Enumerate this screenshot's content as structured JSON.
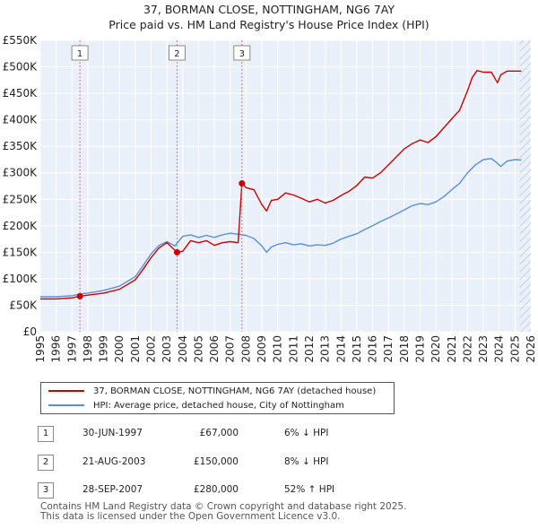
{
  "chart_data": {
    "type": "line",
    "title": "37, BORMAN CLOSE, NOTTINGHAM, NG6 7AY",
    "subtitle": "Price paid vs. HM Land Registry's House Price Index (HPI)",
    "ylim": [
      0,
      550000
    ],
    "y_ticks": [
      {
        "value": 0,
        "label": "£0"
      },
      {
        "value": 50000,
        "label": "£50K"
      },
      {
        "value": 100000,
        "label": "£100K"
      },
      {
        "value": 150000,
        "label": "£150K"
      },
      {
        "value": 200000,
        "label": "£200K"
      },
      {
        "value": 250000,
        "label": "£250K"
      },
      {
        "value": 300000,
        "label": "£300K"
      },
      {
        "value": 350000,
        "label": "£350K"
      },
      {
        "value": 400000,
        "label": "£400K"
      },
      {
        "value": 450000,
        "label": "£450K"
      },
      {
        "value": 500000,
        "label": "£500K"
      },
      {
        "value": 550000,
        "label": "£550K"
      }
    ],
    "xlim": [
      1995,
      2026
    ],
    "x_ticks": [
      "1995",
      "1996",
      "1997",
      "1998",
      "1999",
      "2000",
      "2001",
      "2002",
      "2003",
      "2004",
      "2005",
      "2006",
      "2007",
      "2008",
      "2009",
      "2010",
      "2011",
      "2012",
      "2013",
      "2014",
      "2015",
      "2016",
      "2017",
      "2018",
      "2019",
      "2020",
      "2021",
      "2022",
      "2023",
      "2024",
      "2025",
      "2026"
    ],
    "grid": true,
    "series": [
      {
        "name": "37, BORMAN CLOSE, NOTTINGHAM, NG6 7AY (detached house)",
        "color": "#cc0000",
        "x": [
          1995.0,
          1996.0,
          1997.0,
          1997.5,
          1998.0,
          1999.0,
          2000.0,
          2001.0,
          2001.5,
          2002.0,
          2002.5,
          2003.0,
          2003.64,
          2004.0,
          2004.5,
          2005.0,
          2005.5,
          2006.0,
          2006.5,
          2007.0,
          2007.5,
          2007.74,
          2008.0,
          2008.5,
          2009.0,
          2009.3,
          2009.6,
          2010.0,
          2010.5,
          2011.0,
          2011.5,
          2012.0,
          2012.5,
          2013.0,
          2013.5,
          2014.0,
          2014.5,
          2015.0,
          2015.5,
          2016.0,
          2016.5,
          2017.0,
          2017.5,
          2018.0,
          2018.5,
          2019.0,
          2019.5,
          2020.0,
          2020.5,
          2021.0,
          2021.5,
          2022.0,
          2022.3,
          2022.6,
          2023.0,
          2023.5,
          2023.9,
          2024.1,
          2024.5,
          2025.0,
          2025.4
        ],
        "values": [
          62000,
          62000,
          64000,
          67000,
          69000,
          73000,
          80000,
          98000,
          118000,
          140000,
          158000,
          168000,
          150000,
          152000,
          172000,
          168000,
          172000,
          163000,
          168000,
          170000,
          168000,
          280000,
          272000,
          268000,
          240000,
          228000,
          248000,
          250000,
          262000,
          258000,
          252000,
          245000,
          250000,
          243000,
          248000,
          257000,
          265000,
          276000,
          292000,
          290000,
          300000,
          315000,
          330000,
          345000,
          355000,
          362000,
          357000,
          368000,
          385000,
          402000,
          418000,
          455000,
          480000,
          493000,
          490000,
          490000,
          470000,
          485000,
          492000,
          492000,
          492000
        ]
      },
      {
        "name": "HPI: Average price, detached house, City of Nottingham",
        "color": "#5b8fd4",
        "x": [
          1995.0,
          1996.0,
          1997.0,
          1997.5,
          1998.0,
          1999.0,
          2000.0,
          2001.0,
          2001.5,
          2002.0,
          2002.5,
          2003.0,
          2003.5,
          2004.0,
          2004.5,
          2005.0,
          2005.5,
          2006.0,
          2006.5,
          2007.0,
          2007.5,
          2008.0,
          2008.5,
          2009.0,
          2009.3,
          2009.6,
          2010.0,
          2010.5,
          2011.0,
          2011.5,
          2012.0,
          2012.5,
          2013.0,
          2013.5,
          2014.0,
          2014.5,
          2015.0,
          2015.5,
          2016.0,
          2016.5,
          2017.0,
          2017.5,
          2018.0,
          2018.5,
          2019.0,
          2019.5,
          2020.0,
          2020.5,
          2021.0,
          2021.5,
          2022.0,
          2022.5,
          2023.0,
          2023.5,
          2023.9,
          2024.1,
          2024.5,
          2025.0,
          2025.4
        ],
        "values": [
          66000,
          66000,
          68000,
          71000,
          73000,
          78000,
          86000,
          104000,
          125000,
          147000,
          163000,
          170000,
          162000,
          180000,
          183000,
          178000,
          182000,
          178000,
          183000,
          186000,
          184000,
          182000,
          176000,
          162000,
          150000,
          160000,
          165000,
          168000,
          164000,
          166000,
          162000,
          164000,
          163000,
          167000,
          175000,
          180000,
          185000,
          193000,
          200000,
          208000,
          215000,
          222000,
          230000,
          238000,
          242000,
          240000,
          245000,
          255000,
          268000,
          280000,
          300000,
          315000,
          325000,
          327000,
          318000,
          312000,
          322000,
          325000,
          324000
        ]
      }
    ],
    "sales": [
      {
        "label": "1",
        "x": 1997.5,
        "value": 67000
      },
      {
        "label": "2",
        "x": 2003.64,
        "value": 150000
      },
      {
        "label": "3",
        "x": 2007.74,
        "value": 280000
      }
    ],
    "data_end_x": 2025.3
  },
  "legend": {
    "property": "37, BORMAN CLOSE, NOTTINGHAM, NG6 7AY (detached house)",
    "hpi": "HPI: Average price, detached house, City of Nottingham"
  },
  "sales_table": [
    {
      "num": "1",
      "date": "30-JUN-1997",
      "price": "£67,000",
      "hpi": "6% ↓ HPI"
    },
    {
      "num": "2",
      "date": "21-AUG-2003",
      "price": "£150,000",
      "hpi": "8% ↓ HPI"
    },
    {
      "num": "3",
      "date": "28-SEP-2007",
      "price": "£280,000",
      "hpi": "52% ↑ HPI"
    }
  ],
  "footer": {
    "line1": "Contains HM Land Registry data © Crown copyright and database right 2025.",
    "line2": "This data is licensed under the Open Government Licence v3.0."
  },
  "colors": {
    "property": "#cc0000",
    "hpi": "#5b8fd4",
    "plot_bg": "#eaf0fa",
    "grid": "#ffffff",
    "marker_line": "#ee6688"
  }
}
